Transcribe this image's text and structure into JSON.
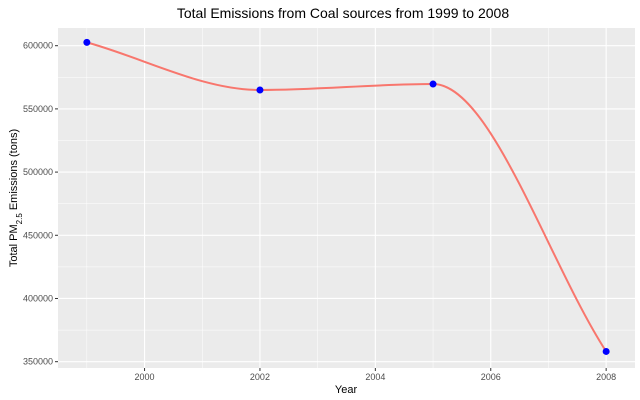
{
  "chart_data": {
    "type": "line",
    "title": "Total Emissions from Coal sources from 1999 to 2008",
    "xlabel": "Year",
    "ylabel": {
      "prefix": "Total PM",
      "subscript": "2.5",
      "suffix": " Emissions (tons)"
    },
    "x": [
      1999,
      2002,
      2005,
      2008
    ],
    "series": [
      {
        "values": [
          602624,
          564936,
          569655,
          358084
        ]
      }
    ],
    "xlim": [
      1998.5,
      2008.5
    ],
    "ylim": [
      345000,
      614000
    ],
    "x_ticks": [
      2000,
      2002,
      2004,
      2006,
      2008
    ],
    "y_ticks": [
      350000,
      400000,
      450000,
      500000,
      550000,
      600000
    ],
    "grid": true,
    "smooth": true,
    "colors": {
      "panel_background": "#ebebeb",
      "grid_major": "#ffffff",
      "line": "#f8766d",
      "point": "#0000ff"
    }
  }
}
